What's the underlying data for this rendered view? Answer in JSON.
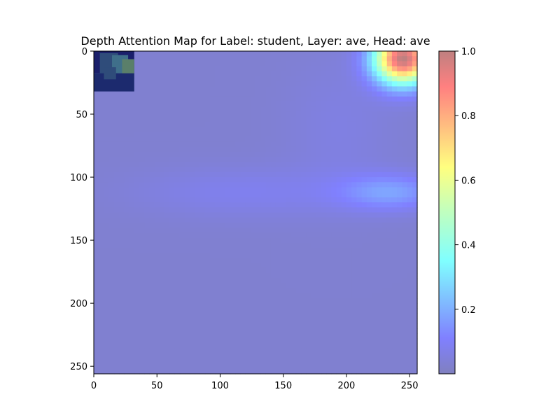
{
  "chart_data": {
    "type": "heatmap",
    "title": "Depth Attention Map for Label: student, Layer: ave, Head: ave",
    "xlabel": "",
    "ylabel": "",
    "xlim": [
      0,
      256
    ],
    "ylim": [
      256,
      0
    ],
    "x_ticks": [
      0,
      50,
      100,
      150,
      200,
      250
    ],
    "y_ticks": [
      0,
      50,
      100,
      150,
      200,
      250
    ],
    "grid": false,
    "colormap": "jet",
    "overlay_alpha": 0.5,
    "colorbar": {
      "range": [
        0.0,
        1.0
      ],
      "ticks": [
        {
          "value": 0.2,
          "label": "0.2"
        },
        {
          "value": 0.4,
          "label": "0.4"
        },
        {
          "value": 0.6,
          "label": "0.6"
        },
        {
          "value": 0.8,
          "label": "0.8"
        },
        {
          "value": 1.0,
          "label": "1.0"
        }
      ]
    },
    "background_value": 0.03,
    "hotspots": [
      {
        "x": 245,
        "y": 6,
        "sx": 16,
        "sy": 14,
        "value": 0.97
      },
      {
        "x": 235,
        "y": 112,
        "sx": 28,
        "sy": 10,
        "value": 0.14
      },
      {
        "x": 120,
        "y": 112,
        "sx": 60,
        "sy": 14,
        "value": 0.05
      },
      {
        "x": 195,
        "y": 60,
        "sx": 30,
        "sy": 40,
        "value": 0.03
      }
    ],
    "inset_image": {
      "x_range": [
        0,
        32
      ],
      "y_range": [
        0,
        32
      ],
      "description_colors": [
        "#1a1f6b",
        "#2f4c7a",
        "#3f6f8a",
        "#5a7f6a",
        "#1c2a6e"
      ]
    }
  }
}
